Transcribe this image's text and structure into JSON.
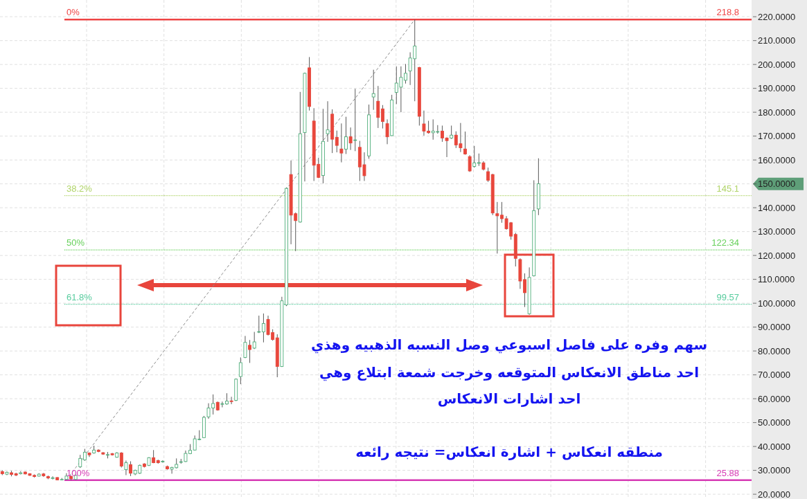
{
  "chart_data": {
    "type": "candlestick",
    "categories": [
      null,
      null,
      null,
      null,
      null,
      null,
      null,
      null,
      null,
      null,
      null,
      null,
      null,
      null,
      null,
      null,
      null,
      null,
      null,
      null,
      null,
      null,
      null,
      null,
      null,
      null,
      null,
      null,
      null,
      null,
      null,
      null,
      null,
      null,
      null,
      null,
      null,
      null,
      null,
      null,
      null,
      null,
      null,
      null,
      null,
      null,
      null,
      null,
      null,
      null,
      null,
      null,
      null,
      null,
      null,
      null,
      null,
      null,
      null,
      null,
      null,
      null,
      null,
      null,
      null,
      null,
      null,
      null,
      null,
      null,
      null,
      null,
      null,
      null,
      null,
      null,
      null,
      null,
      null,
      null,
      null,
      null,
      null,
      null,
      null,
      null,
      null,
      null,
      null,
      null,
      null,
      null,
      null,
      null,
      null,
      null,
      null,
      null,
      null,
      null,
      null,
      null,
      null,
      null,
      null,
      null,
      null,
      null,
      null,
      null,
      null,
      null,
      null,
      null,
      null,
      null,
      null,
      null,
      null,
      null,
      null,
      null,
      null,
      null,
      null,
      null,
      null,
      null,
      null,
      null,
      null,
      null,
      null,
      null,
      null,
      null,
      null,
      null,
      null,
      null,
      null,
      null,
      null,
      null,
      null,
      null,
      null,
      null,
      null,
      null,
      null,
      null,
      null,
      null,
      null,
      null,
      null,
      null,
      null,
      null,
      null,
      null,
      null,
      null
    ],
    "ohlc": [
      [
        29.5,
        30,
        28,
        28.6
      ],
      [
        28.4,
        29.5,
        28,
        29.2
      ],
      [
        29,
        29.8,
        27.5,
        28.3
      ],
      [
        28.6,
        29,
        27.6,
        28
      ],
      [
        28.6,
        29.6,
        28.3,
        29
      ],
      [
        29.3,
        29.5,
        28.3,
        28.5
      ],
      [
        28.6,
        28.8,
        27.7,
        27.9
      ],
      [
        27.9,
        28.3,
        27,
        27.4
      ],
      [
        27.6,
        28.8,
        27.4,
        28.4
      ],
      [
        28.5,
        28.9,
        27.3,
        27.7
      ],
      [
        27.4,
        27.8,
        26.3,
        26.8
      ],
      [
        26.6,
        27.5,
        26.2,
        26.9
      ],
      [
        27,
        27.1,
        25.9,
        26
      ],
      [
        26,
        26.8,
        25.9,
        26.2
      ],
      [
        26.2,
        28.8,
        26,
        27.6
      ],
      [
        27.5,
        27.8,
        25.88,
        26.5
      ],
      [
        26.2,
        28.2,
        26,
        27.9
      ],
      [
        31.5,
        36.5,
        31,
        35
      ],
      [
        34.4,
        39,
        34,
        37.6
      ],
      [
        37.3,
        37.5,
        35.6,
        36.5
      ],
      [
        37.3,
        40.3,
        37,
        38.5
      ],
      [
        38.5,
        38.8,
        37.6,
        37.9
      ],
      [
        37.4,
        37.6,
        36.5,
        36.8
      ],
      [
        36.5,
        37.7,
        35,
        36.6
      ],
      [
        37,
        37.3,
        36.2,
        36.5
      ],
      [
        35.5,
        37.6,
        35.3,
        37.3
      ],
      [
        37.3,
        37.6,
        31.2,
        31.8
      ],
      [
        30.3,
        34.1,
        28,
        33.2
      ],
      [
        32.4,
        33.8,
        27.6,
        28.8
      ],
      [
        28.5,
        30.3,
        28,
        30
      ],
      [
        28.8,
        32.4,
        28.5,
        32.1
      ],
      [
        32.7,
        33,
        31.2,
        31.6
      ],
      [
        32.1,
        35.5,
        31.8,
        35.3
      ],
      [
        35.3,
        38.5,
        33,
        33.2
      ],
      [
        34.1,
        34.5,
        32.8,
        33.2
      ],
      [
        33.7,
        34.2,
        33.2,
        33.8
      ],
      [
        31.6,
        32,
        30.3,
        30.6
      ],
      [
        30.5,
        31.5,
        28.6,
        31.2
      ],
      [
        31.1,
        35,
        30.8,
        32.5
      ],
      [
        33.4,
        34.8,
        32.8,
        33.6
      ],
      [
        33.7,
        38.3,
        33.5,
        37.1
      ],
      [
        37,
        41,
        36.8,
        38.4
      ],
      [
        38.5,
        44.6,
        38.3,
        43.2
      ],
      [
        42.9,
        46.8,
        42.6,
        43.1
      ],
      [
        43.7,
        52.8,
        43.5,
        52.2
      ],
      [
        52.4,
        58.1,
        51.6,
        56.1
      ],
      [
        56.1,
        61.8,
        53.4,
        58
      ],
      [
        58.5,
        58.8,
        55,
        55.3
      ],
      [
        57.7,
        58.8,
        56.4,
        57.9
      ],
      [
        57.8,
        62.3,
        57.5,
        59
      ],
      [
        59.1,
        60.8,
        57.7,
        58.8
      ],
      [
        59.3,
        68.5,
        59,
        68.2
      ],
      [
        69.3,
        77.3,
        66.1,
        75.1
      ],
      [
        77.3,
        86.3,
        77,
        83.6
      ],
      [
        82.4,
        84.6,
        75,
        80.6
      ],
      [
        81.2,
        88,
        80.8,
        83.8
      ],
      [
        87.9,
        94.8,
        87.5,
        88.1
      ],
      [
        88,
        95.7,
        83.6,
        91.5
      ],
      [
        93.2,
        94.8,
        86.5,
        86.9
      ],
      [
        87.7,
        89.1,
        84.3,
        84.8
      ],
      [
        85.5,
        87,
        69,
        73.5
      ],
      [
        73.5,
        102.7,
        73.3,
        101
      ],
      [
        99.3,
        148.5,
        98.8,
        148.1
      ],
      [
        153.9,
        159.8,
        124.7,
        136.9
      ],
      [
        137.5,
        138,
        121.8,
        134.6
      ],
      [
        134,
        188.5,
        133.8,
        171
      ],
      [
        171.5,
        196.6,
        151,
        196.3
      ],
      [
        198.6,
        203.1,
        180.7,
        182.4
      ],
      [
        176.3,
        181.7,
        151.2,
        157.8
      ],
      [
        158.2,
        160.9,
        152.4,
        152.7
      ],
      [
        153.5,
        181.4,
        150.2,
        167.8
      ],
      [
        171,
        184.6,
        167.6,
        172.6
      ],
      [
        179.2,
        181.2,
        162.9,
        168.7
      ],
      [
        169.5,
        172.3,
        163.2,
        166.1
      ],
      [
        164.6,
        175.3,
        159,
        162.9
      ],
      [
        164.5,
        178.1,
        162.5,
        169.7
      ],
      [
        169.7,
        173.6,
        164.2,
        167.1
      ],
      [
        168.2,
        189.8,
        163.7,
        168.4
      ],
      [
        165.3,
        168,
        151.2,
        157.1
      ],
      [
        158,
        163.2,
        151.2,
        153.4
      ],
      [
        161.7,
        183.2,
        160.5,
        178.9
      ],
      [
        186.4,
        197.8,
        181,
        187.8
      ],
      [
        184.6,
        191,
        173.4,
        177.8
      ],
      [
        181.4,
        183,
        173.2,
        176.1
      ],
      [
        175.2,
        177,
        166.6,
        169.7
      ],
      [
        170.2,
        187.3,
        170,
        185.1
      ],
      [
        188.3,
        199.2,
        183.4,
        192.2
      ],
      [
        190.5,
        199.2,
        180,
        194.6
      ],
      [
        193.4,
        200.2,
        192,
        196.3
      ],
      [
        197.3,
        205.1,
        191.4,
        202.7
      ],
      [
        202.4,
        218.8,
        184.6,
        207.7
      ],
      [
        198.7,
        199,
        174.4,
        178.3
      ],
      [
        175.1,
        180.7,
        170.2,
        172.1
      ],
      [
        172.1,
        176.4,
        171,
        171.4
      ],
      [
        171.4,
        177,
        168.5,
        172.1
      ],
      [
        171.7,
        174.6,
        171,
        171.9
      ],
      [
        172.1,
        174.4,
        167.6,
        169.2
      ],
      [
        169.2,
        169.5,
        161.2,
        168.1
      ],
      [
        169.2,
        174.4,
        168.8,
        170.4
      ],
      [
        170.4,
        172,
        165,
        166.3
      ],
      [
        166.8,
        175.5,
        163.3,
        165.1
      ],
      [
        164.6,
        171.9,
        162.2,
        162.5
      ],
      [
        161.4,
        162,
        155,
        155.4
      ],
      [
        157.3,
        165.9,
        156.8,
        158.8
      ],
      [
        158.6,
        162.7,
        157.5,
        158.9
      ],
      [
        158.8,
        159.5,
        155.6,
        156.1
      ],
      [
        155.1,
        156.8,
        150.8,
        151.5
      ],
      [
        153.9,
        154.2,
        136.9,
        137.8
      ],
      [
        137.5,
        142.4,
        120.8,
        136.6
      ],
      [
        136.9,
        142.4,
        133.7,
        135.4
      ],
      [
        135.4,
        136.5,
        130.8,
        131.2
      ],
      [
        133.7,
        134,
        126.6,
        128.1
      ],
      [
        128.8,
        129.5,
        115.4,
        118.8
      ],
      [
        118.3,
        118.8,
        106,
        109.3
      ],
      [
        109.9,
        112.5,
        98.4,
        104.4
      ],
      [
        95.6,
        115,
        95.2,
        110.8
      ],
      [
        111.5,
        151.5,
        111.2,
        138.8
      ],
      [
        139.5,
        160.7,
        136.9,
        150
      ],
      null,
      null,
      null,
      null,
      null,
      null,
      null,
      null,
      null,
      null,
      null,
      null,
      null,
      null,
      null,
      null,
      null,
      null,
      null,
      null,
      null,
      null,
      null,
      null,
      null,
      null,
      null,
      null,
      null,
      null,
      null,
      null,
      null,
      null,
      null,
      null,
      null,
      null,
      null,
      null,
      null,
      null,
      null,
      null,
      null,
      null
    ],
    "series": [
      {
        "type": "line",
        "color": "#8c8c8c",
        "line_style": "dashed",
        "values": [
          null,
          null,
          null,
          null,
          null,
          null,
          null,
          null,
          null,
          null,
          null,
          null,
          null,
          null,
          26.0,
          28.5,
          31.1,
          33.6,
          36.1,
          38.7,
          41.2,
          43.8,
          46.3,
          48.8,
          51.4,
          53.9,
          56.4,
          59.0,
          61.5,
          64.1,
          66.6,
          69.1,
          71.7,
          74.2,
          76.7,
          79.3,
          81.8,
          84.3,
          86.9,
          89.4,
          92.0,
          94.5,
          97.0,
          99.6,
          102.1,
          104.6,
          107.2,
          109.7,
          112.3,
          114.8,
          117.3,
          119.9,
          122.4,
          124.9,
          127.5,
          130.0,
          132.5,
          135.1,
          137.6,
          140.2,
          142.7,
          145.2,
          147.8,
          150.3,
          152.8,
          155.4,
          157.9,
          160.5,
          163.0,
          165.5,
          168.1,
          170.6,
          173.1,
          175.7,
          178.2,
          180.7,
          183.3,
          185.8,
          188.4,
          190.9,
          193.4,
          196.0,
          198.5,
          201.0,
          203.6,
          206.1,
          208.7,
          211.2,
          213.7,
          216.3,
          218.8,
          null,
          null,
          null,
          null,
          null,
          null,
          null,
          null,
          null,
          null,
          null,
          null,
          null,
          null,
          null,
          null,
          null,
          null,
          null,
          null,
          null,
          null,
          null,
          null,
          null,
          null,
          null,
          null,
          null,
          null,
          null,
          null,
          null,
          null,
          null,
          null,
          null,
          null,
          null,
          null,
          null,
          null,
          null,
          null,
          null,
          null,
          null,
          null,
          null,
          null,
          null,
          null,
          null,
          null,
          null,
          null,
          null,
          null,
          null,
          null,
          null,
          null,
          null,
          null,
          null,
          null,
          null,
          null,
          null,
          null,
          null,
          null,
          null
        ]
      }
    ],
    "ylim": [
      18,
      227
    ],
    "yticks": [
      {
        "value": 20,
        "label": "20.0000"
      },
      {
        "value": 30,
        "label": "30.0000"
      },
      {
        "value": 40,
        "label": "40.0000"
      },
      {
        "value": 50,
        "label": "50.0000"
      },
      {
        "value": 60,
        "label": "60.0000"
      },
      {
        "value": 70,
        "label": "70.0000"
      },
      {
        "value": 80,
        "label": "80.0000"
      },
      {
        "value": 90,
        "label": "90.0000"
      },
      {
        "value": 100,
        "label": "100.0000"
      },
      {
        "value": 110,
        "label": "110.0000"
      },
      {
        "value": 120,
        "label": "120.0000"
      },
      {
        "value": 130,
        "label": "130.0000"
      },
      {
        "value": 140,
        "label": "140.0000"
      },
      {
        "value": 150,
        "label": "150.0000"
      },
      {
        "value": 160,
        "label": "160.0000"
      },
      {
        "value": 170,
        "label": "170.0000"
      },
      {
        "value": 180,
        "label": "180.0000"
      },
      {
        "value": 190,
        "label": "190.0000"
      },
      {
        "value": 200,
        "label": "200.0000"
      },
      {
        "value": 210,
        "label": "210.0000"
      },
      {
        "value": 220,
        "label": "220.0000"
      }
    ],
    "ref_lines": [
      {
        "axis": "y",
        "value": 218.8,
        "label": "218.8",
        "color": "#ee4444",
        "line_style": "solid"
      },
      {
        "axis": "y",
        "value": 145.1,
        "label": "145.1",
        "color": "#b0d468",
        "line_style": "dotted"
      },
      {
        "axis": "y",
        "value": 122.34,
        "label": "122.34",
        "color": "#66d05a",
        "line_style": "dotted"
      },
      {
        "axis": "y",
        "value": 99.57,
        "label": "99.57",
        "color": "#58cc9e",
        "line_style": "dotted"
      },
      {
        "axis": "y",
        "value": 25.88,
        "label": "25.88",
        "color": "#d63ab4",
        "line_style": "solid"
      }
    ],
    "annotations": [
      {
        "text": "0%",
        "y": 218.8
      },
      {
        "text": "38.2%",
        "y": 145.1
      },
      {
        "text": "50%",
        "y": 122.34
      },
      {
        "text": "61.8%",
        "y": 99.57
      },
      {
        "text": "100%",
        "y": 25.88
      },
      "سهم وفره على فاصل اسبوعي وصل النسبه الذهبيه وهذي",
      "احد مناطق الانعكاس المتوقعه وخرجت شمعة ابتلاع وهي",
      "احد اشارات الانعكاس",
      "منطقه انعكاس + اشارة انعكاس= نتيجه رائعه"
    ],
    "grid": true,
    "tick_labels": "y"
  }
}
